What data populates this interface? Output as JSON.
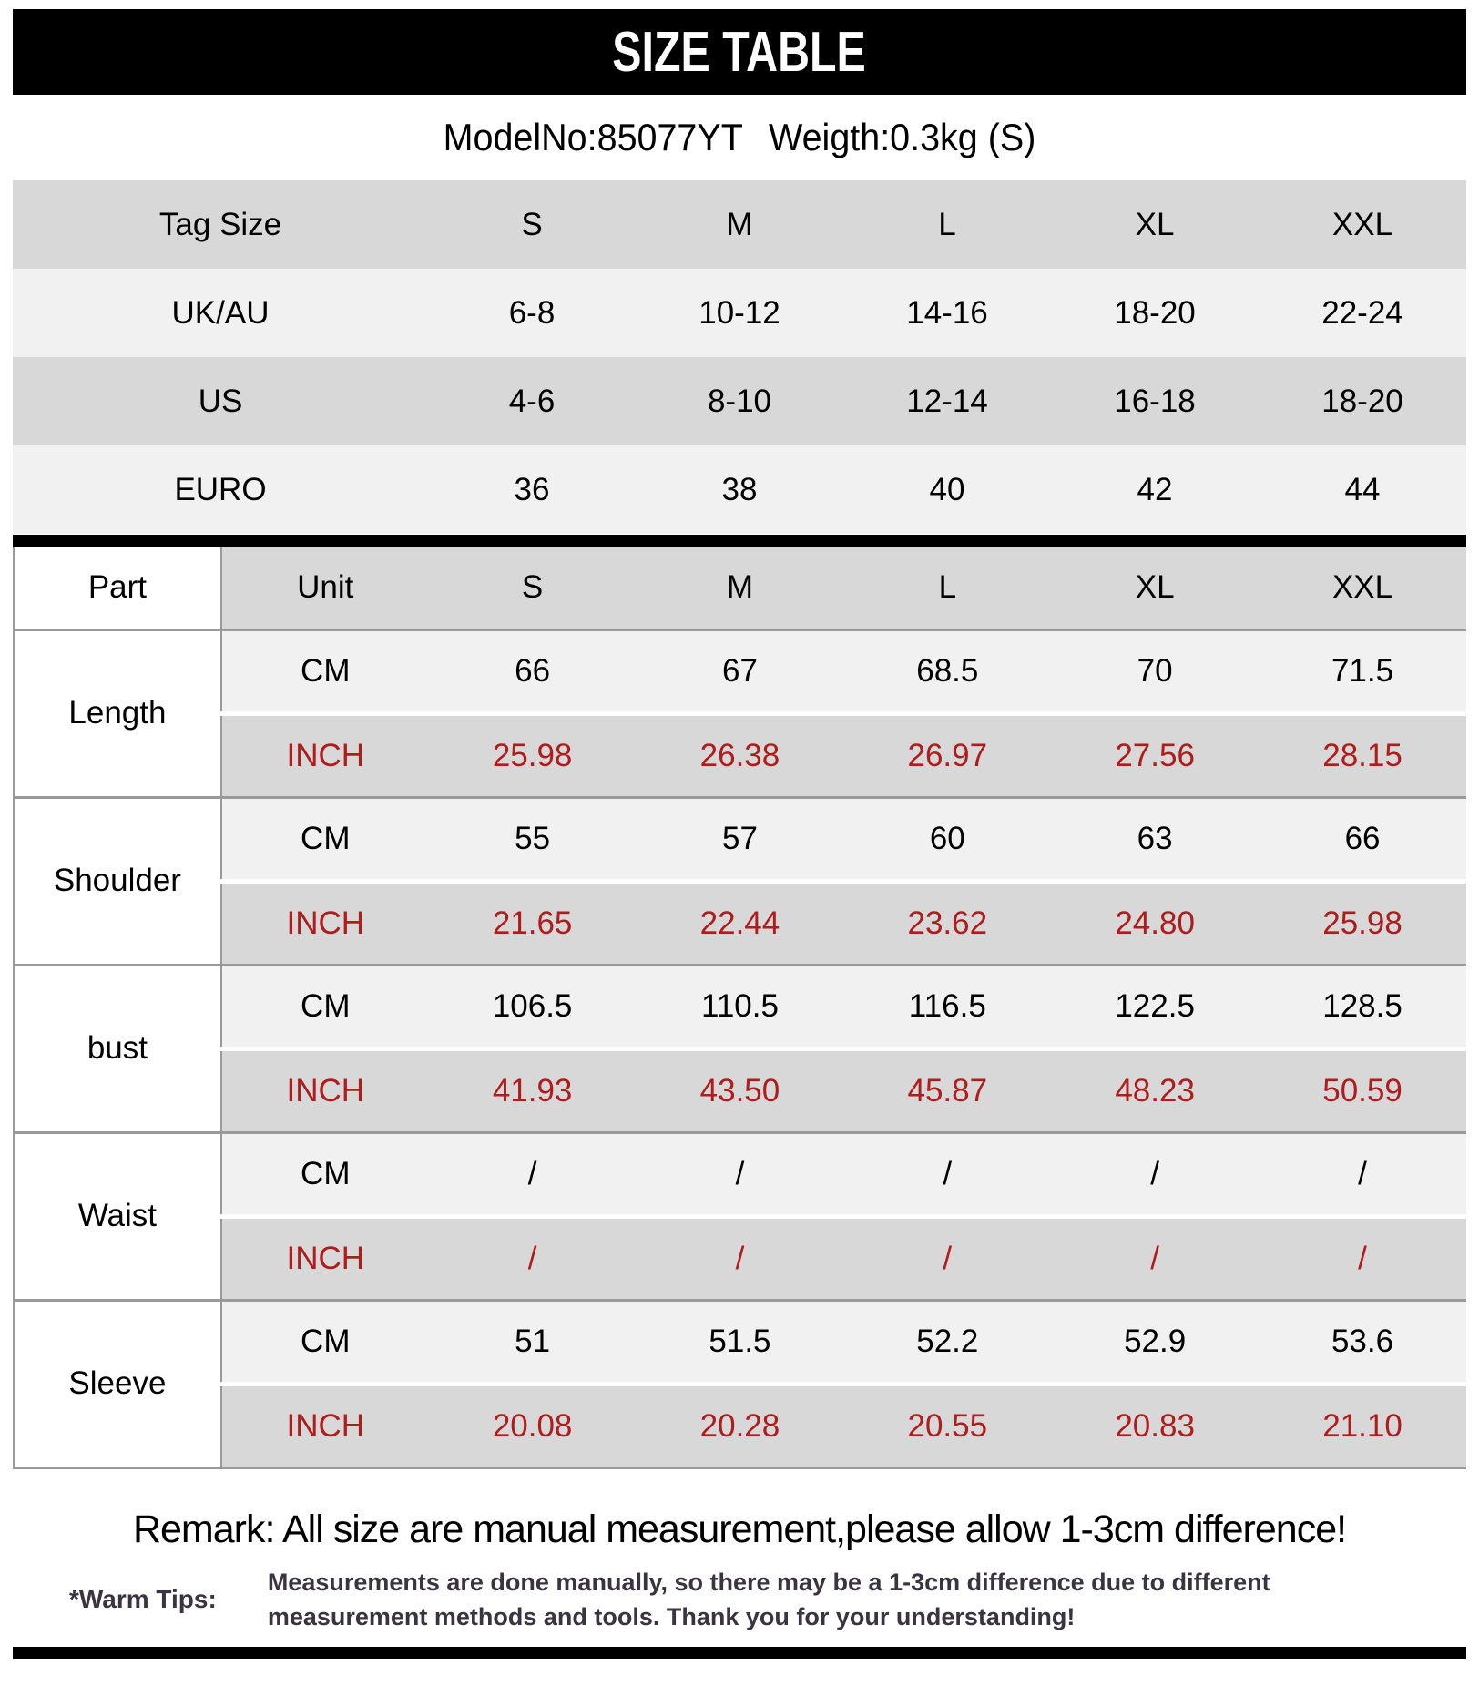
{
  "header": {
    "title": "SIZE TABLE",
    "model": "ModelNo:85077YT",
    "weight": "Weigth:0.3kg (S)"
  },
  "conversion_table": {
    "rows": [
      {
        "label": "Tag Size",
        "values": [
          "S",
          "M",
          "L",
          "XL",
          "XXL"
        ]
      },
      {
        "label": "UK/AU",
        "values": [
          "6-8",
          "10-12",
          "14-16",
          "18-20",
          "22-24"
        ]
      },
      {
        "label": "US",
        "values": [
          "4-6",
          "8-10",
          "12-14",
          "16-18",
          "18-20"
        ]
      },
      {
        "label": "EURO",
        "values": [
          "36",
          "38",
          "40",
          "42",
          "44"
        ]
      }
    ]
  },
  "measurement_table": {
    "headers": [
      "Part",
      "Unit",
      "S",
      "M",
      "L",
      "XL",
      "XXL"
    ],
    "unit_labels": {
      "cm": "CM",
      "inch": "INCH"
    },
    "parts": [
      {
        "name": "Length",
        "cm": [
          "66",
          "67",
          "68.5",
          "70",
          "71.5"
        ],
        "inch": [
          "25.98",
          "26.38",
          "26.97",
          "27.56",
          "28.15"
        ]
      },
      {
        "name": "Shoulder",
        "cm": [
          "55",
          "57",
          "60",
          "63",
          "66"
        ],
        "inch": [
          "21.65",
          "22.44",
          "23.62",
          "24.80",
          "25.98"
        ]
      },
      {
        "name": "bust",
        "cm": [
          "106.5",
          "110.5",
          "116.5",
          "122.5",
          "128.5"
        ],
        "inch": [
          "41.93",
          "43.50",
          "45.87",
          "48.23",
          "50.59"
        ]
      },
      {
        "name": "Waist",
        "cm": [
          "/",
          "/",
          "/",
          "/",
          "/"
        ],
        "inch": [
          "/",
          "/",
          "/",
          "/",
          "/"
        ]
      },
      {
        "name": "Sleeve",
        "cm": [
          "51",
          "51.5",
          "52.2",
          "52.9",
          "53.6"
        ],
        "inch": [
          "20.08",
          "20.28",
          "20.55",
          "20.83",
          "21.10"
        ]
      }
    ]
  },
  "footer": {
    "remark": "Remark: All size are manual measurement,please allow 1-3cm difference!",
    "warm_tips_label": "*Warm Tips:",
    "warm_tips_text": "Measurements are done manually, so there may be a 1-3cm difference due to different measurement methods and tools. Thank you for your understanding!"
  },
  "colors": {
    "row_dark": "#d8d8d8",
    "row_light": "#f1f1f1",
    "border_gray": "#9a9a9a",
    "inch_red": "#b01b1b",
    "tips_text": "#3a3340",
    "bar_black": "#000000"
  }
}
